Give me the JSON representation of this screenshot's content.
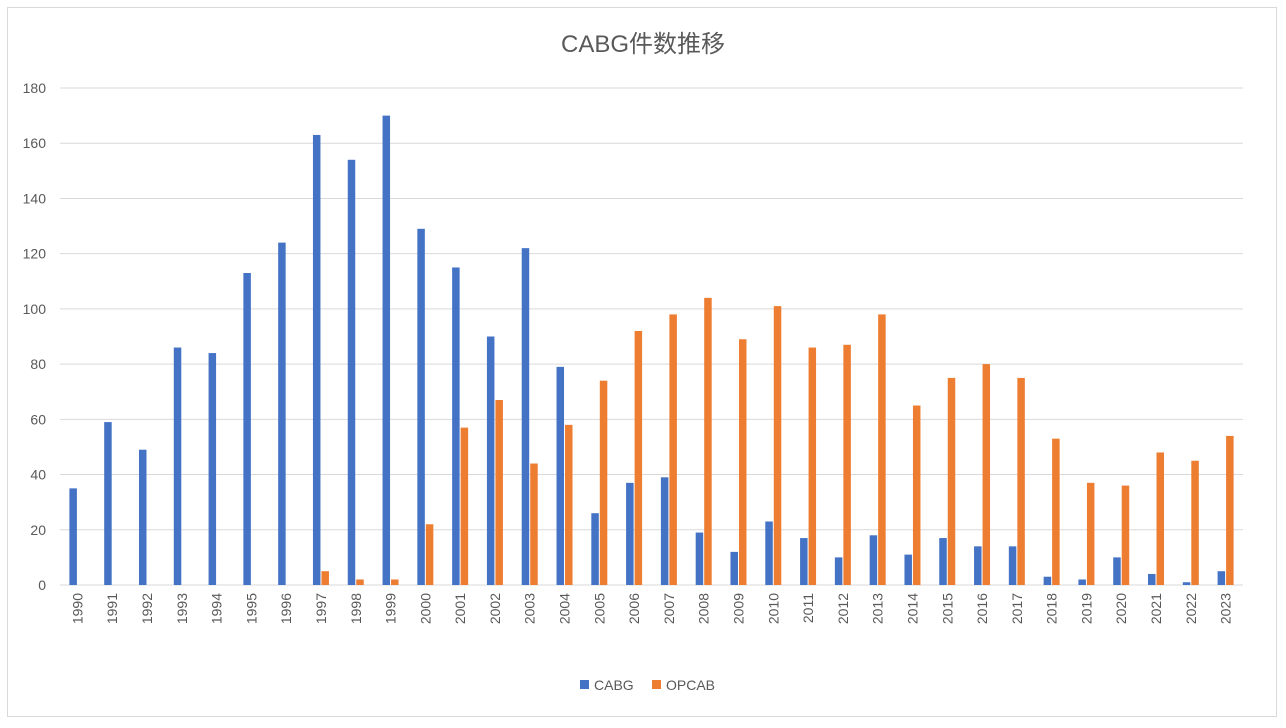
{
  "chart_data": {
    "type": "bar",
    "title": "CABG件数推移",
    "xlabel": "",
    "ylabel": "",
    "ylim": [
      0,
      180
    ],
    "yticks": [
      0,
      20,
      40,
      60,
      80,
      100,
      120,
      140,
      160,
      180
    ],
    "grid": true,
    "legend_position": "bottom",
    "categories": [
      "1990",
      "1991",
      "1992",
      "1993",
      "1994",
      "1995",
      "1996",
      "1997",
      "1998",
      "1999",
      "2000",
      "2001",
      "2002",
      "2003",
      "2004",
      "2005",
      "2006",
      "2007",
      "2008",
      "2009",
      "2010",
      "2011",
      "2012",
      "2013",
      "2014",
      "2015",
      "2016",
      "2017",
      "2018",
      "2019",
      "2020",
      "2021",
      "2022",
      "2023"
    ],
    "series": [
      {
        "name": "CABG",
        "color": "#4472c4",
        "values": [
          35,
          59,
          49,
          86,
          84,
          113,
          124,
          163,
          154,
          170,
          129,
          115,
          90,
          122,
          79,
          26,
          37,
          39,
          19,
          12,
          23,
          17,
          10,
          18,
          11,
          17,
          14,
          14,
          3,
          2,
          10,
          4,
          1,
          5
        ]
      },
      {
        "name": "OPCAB",
        "color": "#ed7d31",
        "values": [
          0,
          0,
          0,
          0,
          0,
          0,
          0,
          5,
          2,
          2,
          22,
          57,
          67,
          44,
          58,
          74,
          92,
          98,
          104,
          89,
          101,
          86,
          87,
          98,
          65,
          75,
          80,
          75,
          53,
          37,
          36,
          48,
          45,
          54
        ]
      }
    ]
  }
}
